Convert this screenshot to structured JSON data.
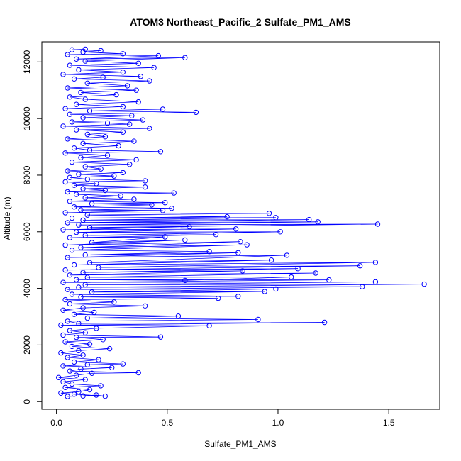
{
  "chart_data": {
    "type": "scatter",
    "title": "ATOM3 Northeast_Pacific_2 Sulfate_PM1_AMS",
    "xlabel": "Sulfate_PM1_AMS",
    "ylabel": "Altitude (m)",
    "xlim": [
      -0.066,
      1.73
    ],
    "ylim": [
      -270,
      12710
    ],
    "xticks": [
      0.0,
      0.5,
      1.0,
      1.5
    ],
    "xtick_labels": [
      "0.0",
      "0.5",
      "1.0",
      "1.5"
    ],
    "yticks": [
      0,
      2000,
      4000,
      6000,
      8000,
      10000,
      12000
    ],
    "ytick_labels": [
      "0",
      "2000",
      "4000",
      "6000",
      "8000",
      "10000",
      "12000"
    ],
    "marker": "open-circle",
    "color": "#0000ff",
    "connected_by_line": true,
    "grid": false,
    "series": [
      {
        "points": [
          [
            0.05,
            180
          ],
          [
            0.12,
            200
          ],
          [
            0.18,
            230
          ],
          [
            0.22,
            190
          ],
          [
            0.08,
            260
          ],
          [
            0.02,
            300
          ],
          [
            0.1,
            350
          ],
          [
            0.15,
            420
          ],
          [
            0.04,
            500
          ],
          [
            0.2,
            560
          ],
          [
            0.07,
            620
          ],
          [
            0.03,
            700
          ],
          [
            0.13,
            780
          ],
          [
            0.01,
            850
          ],
          [
            0.09,
            930
          ],
          [
            0.16,
            1000
          ],
          [
            0.37,
            1020
          ],
          [
            0.06,
            1080
          ],
          [
            0.11,
            1150
          ],
          [
            0.25,
            1200
          ],
          [
            0.03,
            1260
          ],
          [
            0.14,
            1300
          ],
          [
            0.3,
            1330
          ],
          [
            0.08,
            1400
          ],
          [
            0.19,
            1480
          ],
          [
            0.05,
            1560
          ],
          [
            0.12,
            1640
          ],
          [
            0.02,
            1720
          ],
          [
            0.1,
            1800
          ],
          [
            0.24,
            1870
          ],
          [
            0.07,
            1950
          ],
          [
            0.15,
            2030
          ],
          [
            0.04,
            2110
          ],
          [
            0.21,
            2190
          ],
          [
            0.09,
            2270
          ],
          [
            0.47,
            2280
          ],
          [
            0.03,
            2350
          ],
          [
            0.13,
            2430
          ],
          [
            0.06,
            2510
          ],
          [
            0.18,
            2590
          ],
          [
            0.69,
            2680
          ],
          [
            0.02,
            2700
          ],
          [
            1.21,
            2800
          ],
          [
            0.1,
            2760
          ],
          [
            0.05,
            2840
          ],
          [
            0.91,
            2900
          ],
          [
            0.14,
            2950
          ],
          [
            0.55,
            3020
          ],
          [
            0.08,
            3080
          ],
          [
            0.17,
            3150
          ],
          [
            0.03,
            3230
          ],
          [
            0.12,
            3310
          ],
          [
            0.4,
            3380
          ],
          [
            0.06,
            3450
          ],
          [
            0.26,
            3520
          ],
          [
            0.04,
            3600
          ],
          [
            0.73,
            3650
          ],
          [
            0.11,
            3700
          ],
          [
            0.82,
            3720
          ],
          [
            0.07,
            3790
          ],
          [
            0.94,
            3890
          ],
          [
            0.16,
            3870
          ],
          [
            0.99,
            3980
          ],
          [
            0.05,
            3960
          ],
          [
            1.38,
            4060
          ],
          [
            0.1,
            4040
          ],
          [
            1.66,
            4150
          ],
          [
            0.13,
            4130
          ],
          [
            1.44,
            4230
          ],
          [
            0.03,
            4210
          ],
          [
            1.23,
            4300
          ],
          [
            0.09,
            4310
          ],
          [
            0.58,
            4280
          ],
          [
            1.06,
            4400
          ],
          [
            0.14,
            4390
          ],
          [
            1.17,
            4540
          ],
          [
            0.06,
            4470
          ],
          [
            0.84,
            4620
          ],
          [
            0.12,
            4560
          ],
          [
            1.09,
            4700
          ],
          [
            0.04,
            4650
          ],
          [
            1.37,
            4800
          ],
          [
            0.19,
            4740
          ],
          [
            1.44,
            4920
          ],
          [
            0.08,
            4830
          ],
          [
            0.97,
            5000
          ],
          [
            0.15,
            4910
          ],
          [
            1.04,
            5170
          ],
          [
            0.05,
            5090
          ],
          [
            0.82,
            5260
          ],
          [
            0.13,
            5180
          ],
          [
            0.69,
            5300
          ],
          [
            0.07,
            5350
          ],
          [
            0.86,
            5540
          ],
          [
            0.11,
            5440
          ],
          [
            0.83,
            5650
          ],
          [
            0.04,
            5530
          ],
          [
            0.58,
            5710
          ],
          [
            0.16,
            5620
          ],
          [
            0.49,
            5820
          ],
          [
            0.06,
            5790
          ],
          [
            0.72,
            5900
          ],
          [
            0.13,
            5870
          ],
          [
            1.01,
            6000
          ],
          [
            0.09,
            5980
          ],
          [
            0.81,
            6100
          ],
          [
            0.03,
            6070
          ],
          [
            0.6,
            6180
          ],
          [
            0.15,
            6150
          ],
          [
            1.45,
            6270
          ],
          [
            0.1,
            6240
          ],
          [
            1.18,
            6350
          ],
          [
            0.05,
            6320
          ],
          [
            1.14,
            6430
          ],
          [
            0.12,
            6410
          ],
          [
            0.99,
            6500
          ],
          [
            0.07,
            6480
          ],
          [
            0.77,
            6530
          ],
          [
            0.14,
            6590
          ],
          [
            0.96,
            6650
          ],
          [
            0.04,
            6670
          ],
          [
            0.48,
            6750
          ],
          [
            0.11,
            6770
          ],
          [
            0.52,
            6830
          ],
          [
            0.08,
            6880
          ],
          [
            0.43,
            6950
          ],
          [
            0.16,
            6990
          ],
          [
            0.49,
            7030
          ],
          [
            0.06,
            7080
          ],
          [
            0.35,
            7150
          ],
          [
            0.13,
            7200
          ],
          [
            0.29,
            7270
          ],
          [
            0.09,
            7320
          ],
          [
            0.53,
            7370
          ],
          [
            0.05,
            7410
          ],
          [
            0.22,
            7460
          ],
          [
            0.12,
            7520
          ],
          [
            0.4,
            7580
          ],
          [
            0.08,
            7640
          ],
          [
            0.18,
            7700
          ],
          [
            0.04,
            7760
          ],
          [
            0.4,
            7800
          ],
          [
            0.14,
            7860
          ],
          [
            0.06,
            7920
          ],
          [
            0.26,
            7970
          ],
          [
            0.1,
            8030
          ],
          [
            0.3,
            8090
          ],
          [
            0.05,
            8150
          ],
          [
            0.2,
            8220
          ],
          [
            0.13,
            8300
          ],
          [
            0.33,
            8380
          ],
          [
            0.07,
            8460
          ],
          [
            0.36,
            8540
          ],
          [
            0.11,
            8620
          ],
          [
            0.23,
            8700
          ],
          [
            0.04,
            8780
          ],
          [
            0.47,
            8830
          ],
          [
            0.15,
            8880
          ],
          [
            0.08,
            8960
          ],
          [
            0.28,
            9040
          ],
          [
            0.12,
            9120
          ],
          [
            0.35,
            9200
          ],
          [
            0.05,
            9280
          ],
          [
            0.22,
            9360
          ],
          [
            0.14,
            9440
          ],
          [
            0.3,
            9520
          ],
          [
            0.09,
            9600
          ],
          [
            0.42,
            9650
          ],
          [
            0.03,
            9730
          ],
          [
            0.33,
            9800
          ],
          [
            0.23,
            9840
          ],
          [
            0.07,
            9880
          ],
          [
            0.39,
            9950
          ],
          [
            0.12,
            10030
          ],
          [
            0.34,
            10100
          ],
          [
            0.06,
            10150
          ],
          [
            0.63,
            10220
          ],
          [
            0.15,
            10270
          ],
          [
            0.48,
            10330
          ],
          [
            0.04,
            10350
          ],
          [
            0.3,
            10420
          ],
          [
            0.09,
            10500
          ],
          [
            0.37,
            10590
          ],
          [
            0.13,
            10680
          ],
          [
            0.06,
            10760
          ],
          [
            0.27,
            10840
          ],
          [
            0.11,
            10920
          ],
          [
            0.36,
            11000
          ],
          [
            0.05,
            11080
          ],
          [
            0.32,
            11160
          ],
          [
            0.14,
            11250
          ],
          [
            0.42,
            11330
          ],
          [
            0.08,
            11400
          ],
          [
            0.21,
            11460
          ],
          [
            0.38,
            11490
          ],
          [
            0.03,
            11560
          ],
          [
            0.3,
            11640
          ],
          [
            0.1,
            11720
          ],
          [
            0.44,
            11800
          ],
          [
            0.06,
            11880
          ],
          [
            0.37,
            11950
          ],
          [
            0.13,
            12030
          ],
          [
            0.58,
            12150
          ],
          [
            0.09,
            12100
          ],
          [
            0.46,
            12220
          ],
          [
            0.05,
            12260
          ],
          [
            0.3,
            12290
          ],
          [
            0.12,
            12350
          ],
          [
            0.2,
            12400
          ],
          [
            0.07,
            12430
          ],
          [
            0.13,
            12450
          ]
        ]
      }
    ]
  }
}
